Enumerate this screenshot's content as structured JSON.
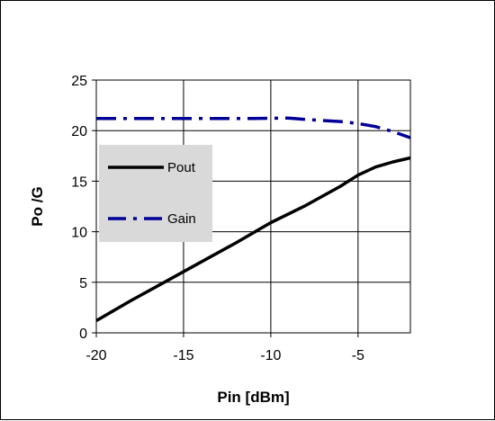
{
  "chart_data": {
    "type": "line",
    "title": "",
    "xlabel": "Pin [dBm]",
    "ylabel": "Po /G",
    "xlim": [
      -20,
      -2
    ],
    "ylim": [
      0,
      25
    ],
    "x_ticks": [
      -20,
      -15,
      -10,
      -5
    ],
    "y_ticks": [
      0,
      5,
      10,
      15,
      20,
      25
    ],
    "x_tick_labels": [
      "-20",
      "-15",
      "-10",
      "-5"
    ],
    "y_tick_labels": [
      "0",
      "5",
      "10",
      "15",
      "20",
      "25"
    ],
    "grid": true,
    "legend_position": "left",
    "series": [
      {
        "name": "Pout",
        "color": "#000000",
        "style": "solid",
        "points": [
          [
            -20,
            1.2
          ],
          [
            -18,
            3.2
          ],
          [
            -16,
            5.1
          ],
          [
            -14,
            7.0
          ],
          [
            -12,
            8.9
          ],
          [
            -11,
            9.9
          ],
          [
            -10,
            10.9
          ],
          [
            -8,
            12.6
          ],
          [
            -6,
            14.5
          ],
          [
            -5,
            15.6
          ],
          [
            -4,
            16.4
          ],
          [
            -3,
            16.9
          ],
          [
            -2,
            17.3
          ]
        ]
      },
      {
        "name": "Gain",
        "color": "#000099",
        "style": "dash-dot",
        "points": [
          [
            -20,
            21.2
          ],
          [
            -17,
            21.2
          ],
          [
            -14,
            21.2
          ],
          [
            -11,
            21.2
          ],
          [
            -9,
            21.25
          ],
          [
            -8,
            21.1
          ],
          [
            -6,
            20.9
          ],
          [
            -5,
            20.7
          ],
          [
            -4,
            20.4
          ],
          [
            -3,
            19.9
          ],
          [
            -2,
            19.3
          ]
        ]
      }
    ]
  }
}
